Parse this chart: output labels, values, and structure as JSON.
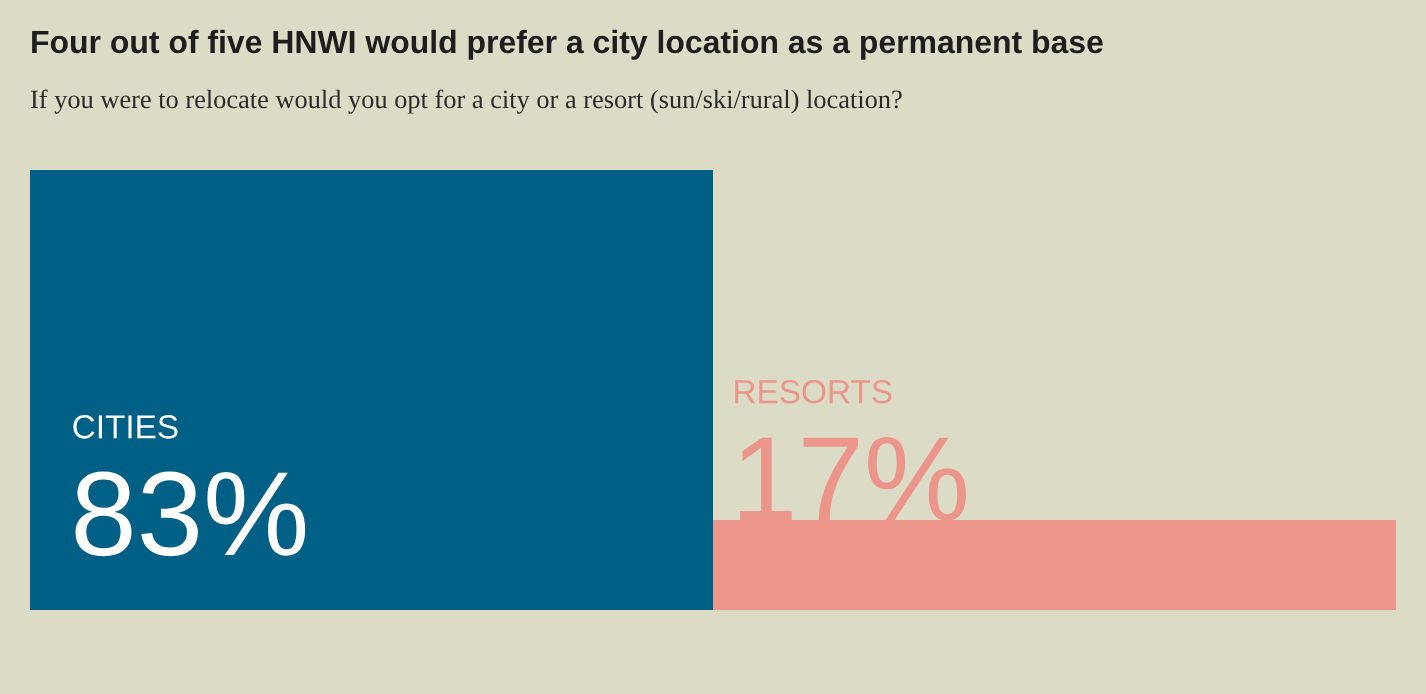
{
  "chart_data": {
    "type": "bar",
    "title": "Four out of five HNWI would prefer a city location as a permanent base",
    "subtitle": "If you were to relocate would you opt for a city or a resort (sun/ski/rural) location?",
    "categories": [
      "CITIES",
      "RESORTS"
    ],
    "values": [
      83,
      17
    ],
    "colors": [
      "#005f85",
      "#ec958b"
    ],
    "value_labels": [
      "83%",
      "17%"
    ]
  }
}
